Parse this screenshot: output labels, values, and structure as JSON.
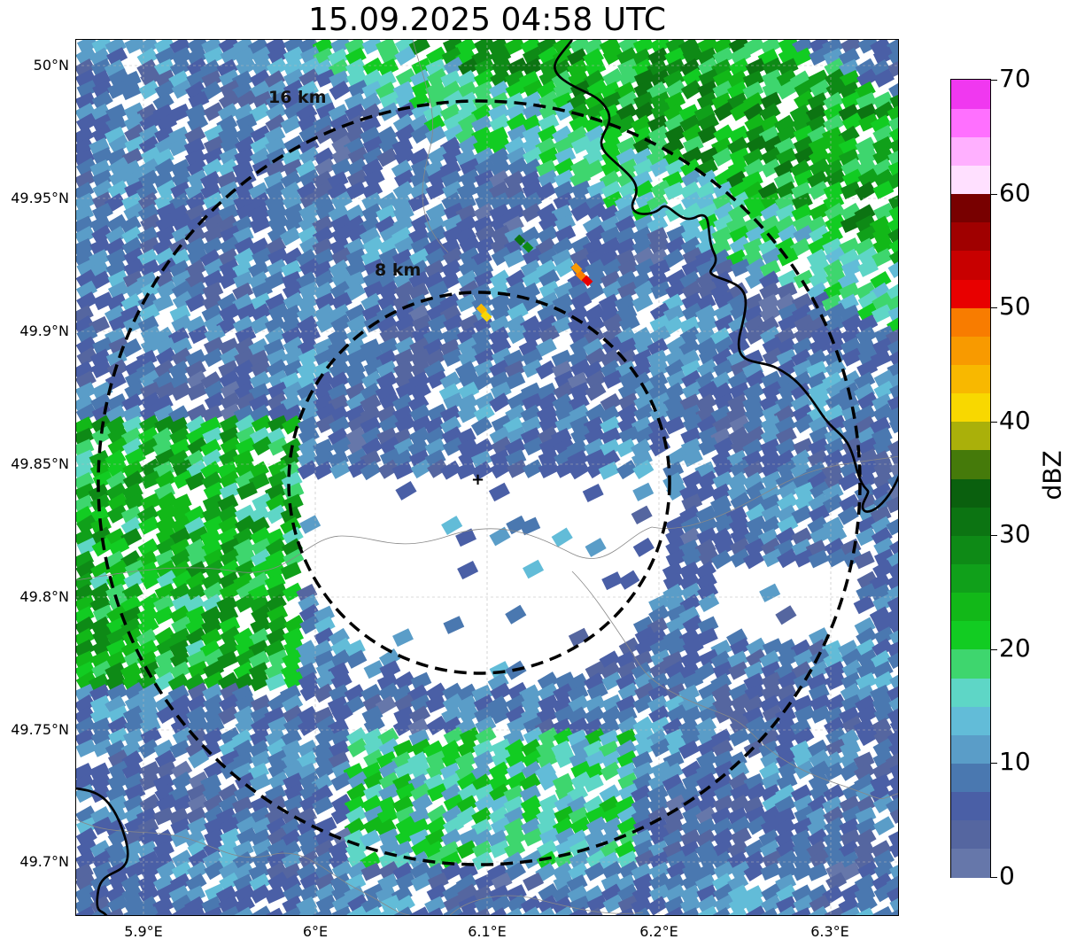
{
  "title": "15.09.2025 04:58 UTC",
  "map": {
    "lat_ticks": [
      "50°N",
      "49.95°N",
      "49.9°N",
      "49.85°N",
      "49.8°N",
      "49.75°N",
      "49.7°N"
    ],
    "lon_ticks": [
      "5.9°E",
      "6°E",
      "6.1°E",
      "6.2°E",
      "6.3°E"
    ],
    "ring_labels": [
      "16 km",
      "8 km"
    ],
    "radar_marker": "+",
    "border_color": "#000000",
    "ring_color": "#000000"
  },
  "colorbar": {
    "label": "dBZ",
    "ticks": [
      "0",
      "10",
      "20",
      "30",
      "40",
      "50",
      "60",
      "70"
    ],
    "min": 0,
    "max": 70,
    "step": 2.5,
    "colors": [
      "#6677aa",
      "#5566a0",
      "#4a5fa6",
      "#4a78b0",
      "#5a9dc8",
      "#62bcd8",
      "#5ed6c6",
      "#3ed66e",
      "#12cc22",
      "#12b818",
      "#10a01a",
      "#0e8a16",
      "#0c7412",
      "#0a600e",
      "#457a0a",
      "#aab00a",
      "#f8d800",
      "#f8b800",
      "#f89a00",
      "#f87c00",
      "#e80000",
      "#c80000",
      "#a00000",
      "#780000",
      "#ffe0ff",
      "#ffb0ff",
      "#ff70ff",
      "#f038f0"
    ]
  },
  "palette": {
    "empty": "#ffffff",
    "grid": "#b8b8b8",
    "admin": "#888888"
  }
}
